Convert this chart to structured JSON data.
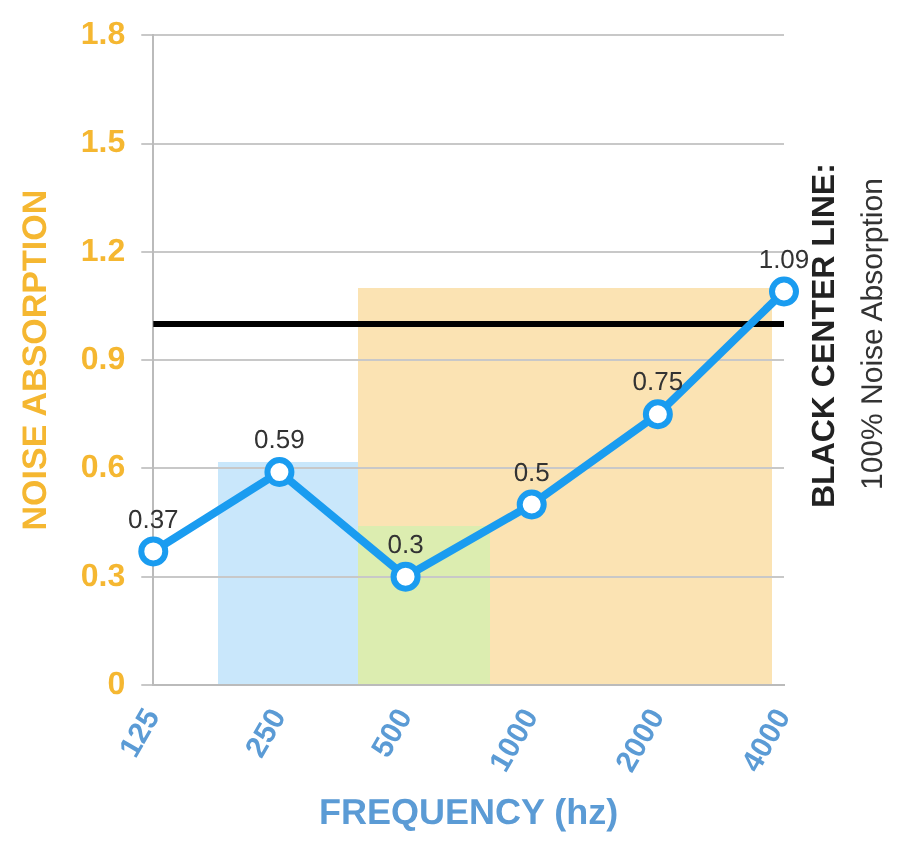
{
  "chart_data": {
    "type": "line",
    "categories": [
      "125",
      "250",
      "500",
      "1000",
      "2000",
      "4000"
    ],
    "values": [
      0.37,
      0.59,
      0.3,
      0.5,
      0.75,
      1.09
    ],
    "color": "#1a9cf0",
    "xlabel": "FREQUENCY (hz)",
    "ylabel": "NOISE ABSORPTION",
    "ylim": [
      0,
      1.8
    ],
    "yticks": [
      0,
      0.3,
      0.6,
      0.9,
      1.2,
      1.5,
      1.8
    ],
    "grid": "y",
    "marker": "circle",
    "data_labels": true,
    "ref_lines": [
      {
        "axis": "y",
        "value": 1,
        "label": "BLACK CENTER LINE:",
        "color": "#000000"
      }
    ],
    "annotations": [
      "100% Noise Absorption"
    ]
  }
}
